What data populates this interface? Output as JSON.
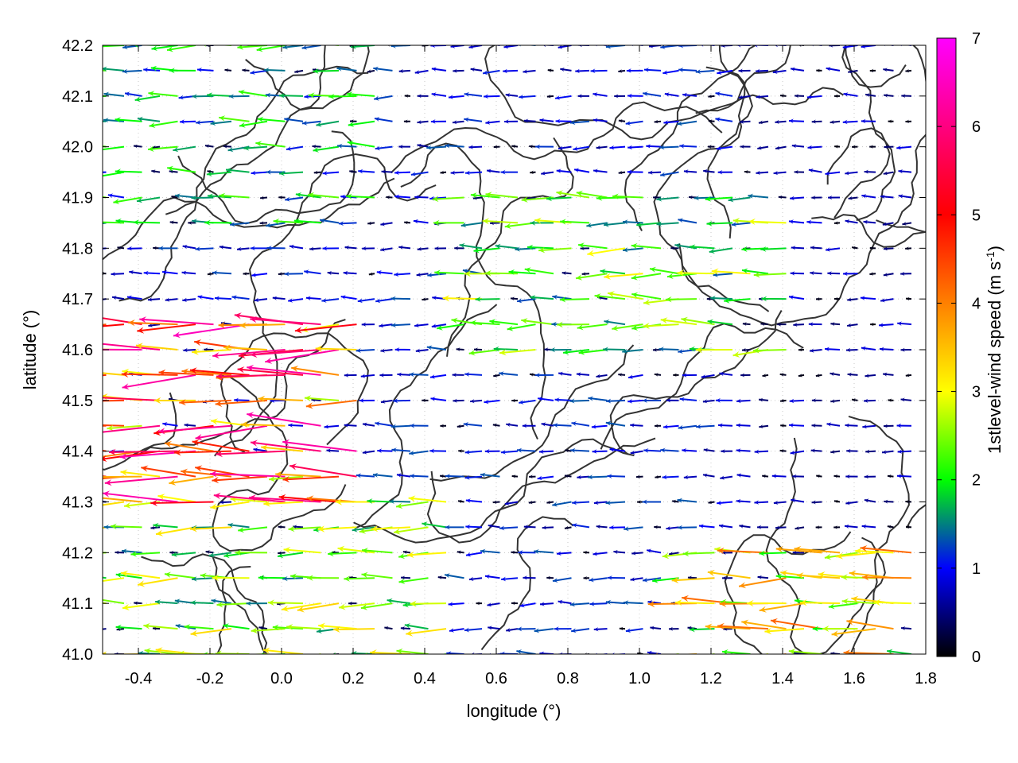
{
  "chart_data": {
    "type": "vector-field",
    "xlabel": "longitude (°)",
    "ylabel": "latitude (°)",
    "xlim": [
      -0.5,
      1.8
    ],
    "ylim": [
      41.0,
      42.2
    ],
    "xticks": [
      "-0.4",
      "-0.2",
      "0.0",
      "0.2",
      "0.4",
      "0.6",
      "0.8",
      "1.0",
      "1.2",
      "1.4",
      "1.6",
      "1.8"
    ],
    "xtick_values": [
      -0.4,
      -0.2,
      0.0,
      0.2,
      0.4,
      0.6,
      0.8,
      1.0,
      1.2,
      1.4,
      1.6,
      1.8
    ],
    "yticks": [
      "41.0",
      "41.1",
      "41.2",
      "41.3",
      "41.4",
      "41.5",
      "41.6",
      "41.7",
      "41.8",
      "41.9",
      "42.0",
      "42.1",
      "42.2"
    ],
    "ytick_values": [
      41.0,
      41.1,
      41.2,
      41.3,
      41.4,
      41.5,
      41.6,
      41.7,
      41.8,
      41.9,
      42.0,
      42.1,
      42.2
    ],
    "grid": true,
    "colorbar": {
      "label": "1stlevel-wind speed (m s",
      "label_superscript": "-1",
      "label_close": ")",
      "range": [
        0,
        7
      ],
      "ticks": [
        "0",
        "1",
        "2",
        "3",
        "4",
        "5",
        "6",
        "7"
      ],
      "tick_values": [
        0,
        1,
        2,
        3,
        4,
        5,
        6,
        7
      ],
      "palette": [
        "#000000",
        "#0000ff",
        "#00ff00",
        "#ffff00",
        "#ff8000",
        "#ff0000",
        "#ff00ff"
      ]
    },
    "contour_color": "#333333",
    "arrow_grid": {
      "lon_start": -0.49,
      "lon_step": 0.05,
      "lat_start": 41.0,
      "lat_step": 0.05
    },
    "wind_regions": [
      {
        "area": "west",
        "lon": [
          -0.5,
          0.25
        ],
        "lat": [
          41.25,
          41.65
        ],
        "speed_ms": 4.8,
        "direction": "westward"
      },
      {
        "area": "southwest",
        "lon": [
          -0.5,
          0.5
        ],
        "lat": [
          41.0,
          41.3
        ],
        "speed_ms": 2.5,
        "direction": "westward"
      },
      {
        "area": "central",
        "lon": [
          0.5,
          1.45
        ],
        "lat": [
          41.55,
          41.9
        ],
        "speed_ms": 2.3,
        "direction": "westward"
      },
      {
        "area": "northwest",
        "lon": [
          -0.5,
          0.3
        ],
        "lat": [
          41.8,
          42.2
        ],
        "speed_ms": 1.8,
        "direction": "westward"
      },
      {
        "area": "southeast",
        "lon": [
          1.1,
          1.8
        ],
        "lat": [
          41.0,
          41.2
        ],
        "speed_ms": 3.2,
        "direction": "westward"
      },
      {
        "area": "east",
        "lon": [
          1.3,
          1.8
        ],
        "lat": [
          41.2,
          42.2
        ],
        "speed_ms": 0.7,
        "direction": "westward"
      }
    ],
    "background_speed_ms": 1.0
  }
}
